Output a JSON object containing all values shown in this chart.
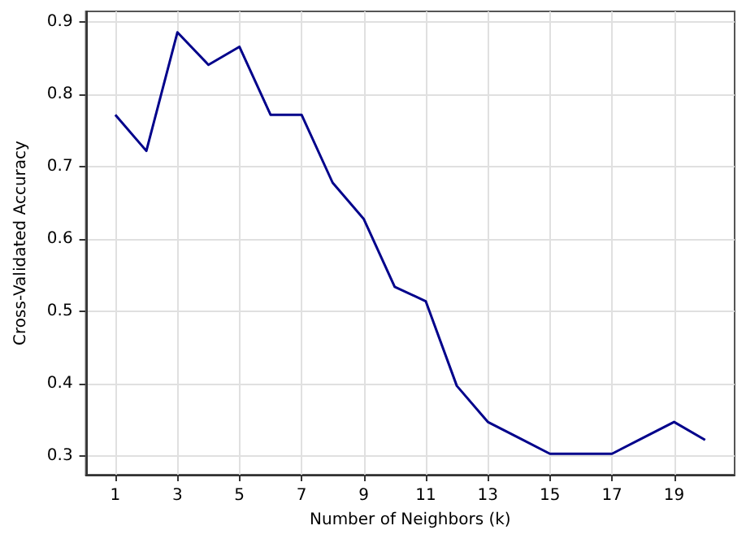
{
  "chart_data": {
    "type": "line",
    "xlabel": "Number of Neighbors (k)",
    "ylabel": "Cross-Validated Accuracy",
    "x": [
      1,
      2,
      3,
      4,
      5,
      6,
      7,
      8,
      9,
      10,
      11,
      12,
      13,
      14,
      15,
      16,
      17,
      18,
      19,
      20
    ],
    "series": [
      {
        "color": "#00008b",
        "values": [
          0.772,
          0.722,
          0.886,
          0.841,
          0.866,
          0.772,
          0.772,
          0.678,
          0.628,
          0.534,
          0.514,
          0.397,
          0.347,
          0.325,
          0.303,
          0.303,
          0.303,
          0.325,
          0.347,
          0.322
        ]
      }
    ],
    "xlim": [
      0.05,
      20.95
    ],
    "xticks": [
      1,
      3,
      5,
      7,
      9,
      11,
      13,
      15,
      17,
      19
    ],
    "ylim": [
      0.274,
      0.915
    ],
    "yticks": [
      0.3,
      0.4,
      0.5,
      0.6,
      0.7,
      0.8,
      0.9
    ],
    "grid": true,
    "marker": "none",
    "line_style": "solid"
  }
}
